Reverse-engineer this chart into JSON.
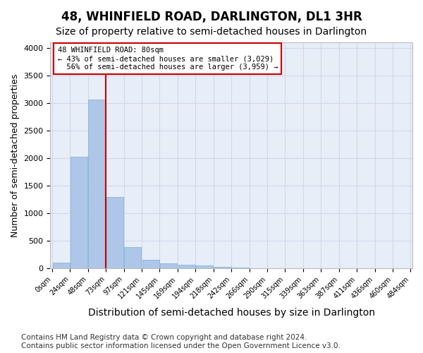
{
  "title1": "48, WHINFIELD ROAD, DARLINGTON, DL1 3HR",
  "title2": "Size of property relative to semi-detached houses in Darlington",
  "xlabel": "Distribution of semi-detached houses by size in Darlington",
  "ylabel": "Number of semi-detached properties",
  "footnote": "Contains HM Land Registry data © Crown copyright and database right 2024.\nContains public sector information licensed under the Open Government Licence v3.0.",
  "bin_labels": [
    "0sqm",
    "24sqm",
    "48sqm",
    "73sqm",
    "97sqm",
    "121sqm",
    "145sqm",
    "169sqm",
    "194sqm",
    "218sqm",
    "242sqm",
    "266sqm",
    "290sqm",
    "315sqm",
    "339sqm",
    "363sqm",
    "387sqm",
    "411sqm",
    "436sqm",
    "460sqm",
    "484sqm"
  ],
  "bar_values": [
    110,
    2030,
    3060,
    1290,
    390,
    155,
    90,
    65,
    50,
    30,
    10,
    5,
    3,
    2,
    1,
    0,
    0,
    0,
    0,
    0
  ],
  "bar_color": "#aec6e8",
  "bar_edge_color": "#7aaed6",
  "pct_smaller": 43,
  "pct_larger": 56,
  "n_smaller": 3029,
  "n_larger": 3959,
  "vline_color": "#cc0000",
  "annotation_box_color": "#ffffff",
  "annotation_box_edge": "#cc0000",
  "ylim": [
    0,
    4100
  ],
  "yticks": [
    0,
    500,
    1000,
    1500,
    2000,
    2500,
    3000,
    3500,
    4000
  ],
  "grid_color": "#d0d8e8",
  "bg_color": "#e8eef8",
  "title1_fontsize": 12,
  "title2_fontsize": 10,
  "xlabel_fontsize": 10,
  "ylabel_fontsize": 9,
  "footnote_fontsize": 7.5,
  "vline_position": 3.0
}
